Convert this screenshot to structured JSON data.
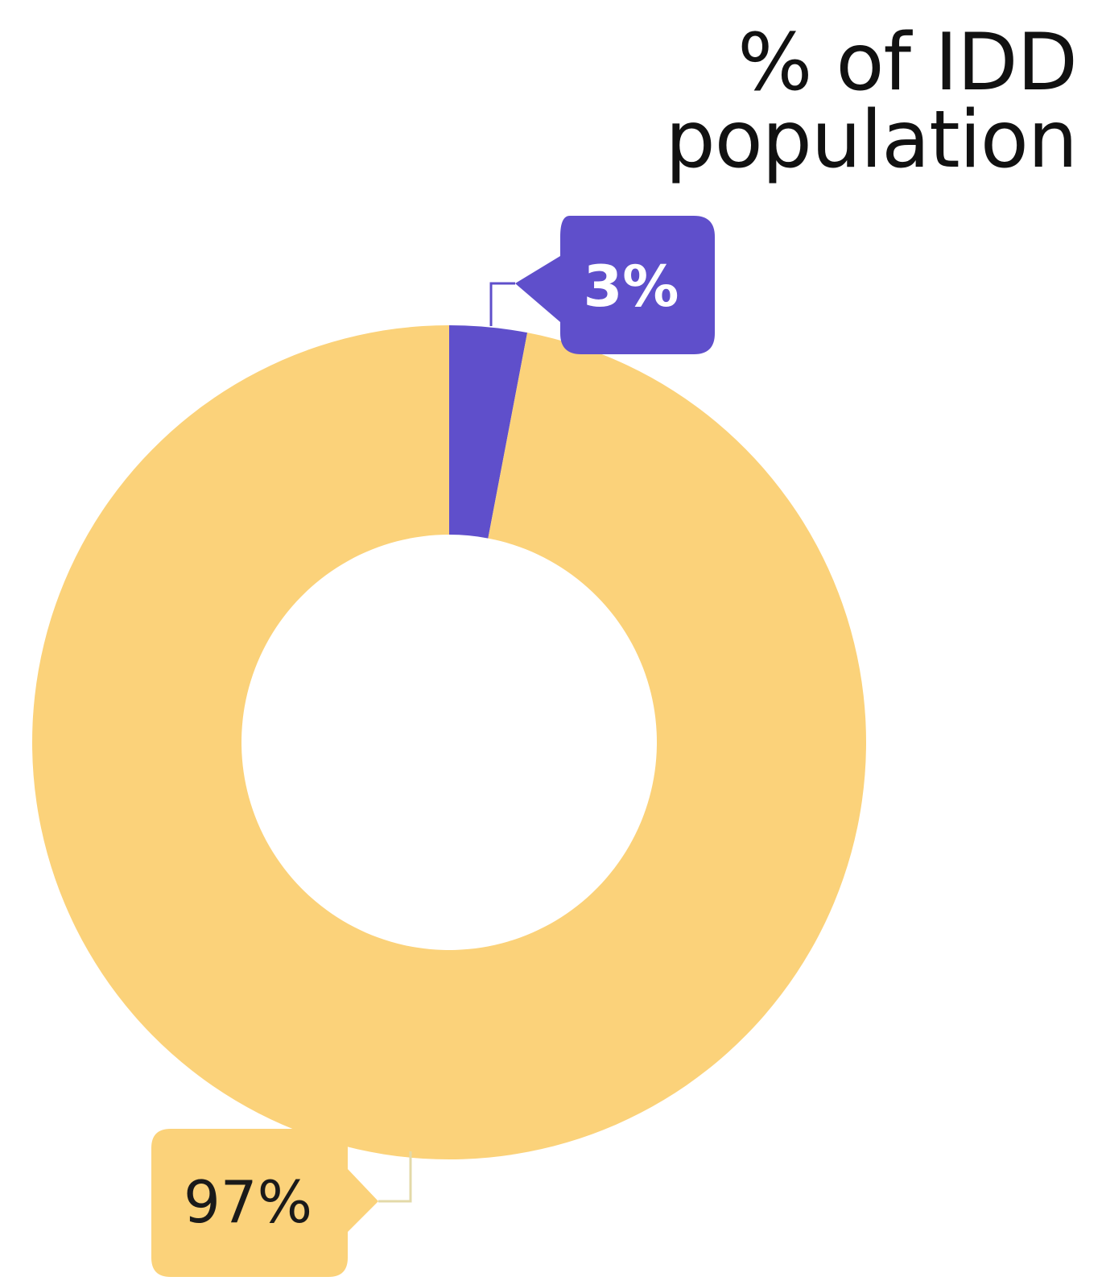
{
  "chart_data": {
    "type": "pie",
    "variant": "donut",
    "title": "% of IDD population",
    "categories": [
      "",
      ""
    ],
    "values": [
      3,
      97
    ],
    "labels": [
      "3%",
      "97%"
    ],
    "colors": [
      "#5F4FCB",
      "#FBD27A"
    ],
    "label_text_colors": [
      "#FFFFFF",
      "#1A1A1A"
    ],
    "start_angle_deg": 0,
    "direction": "clockwise"
  }
}
